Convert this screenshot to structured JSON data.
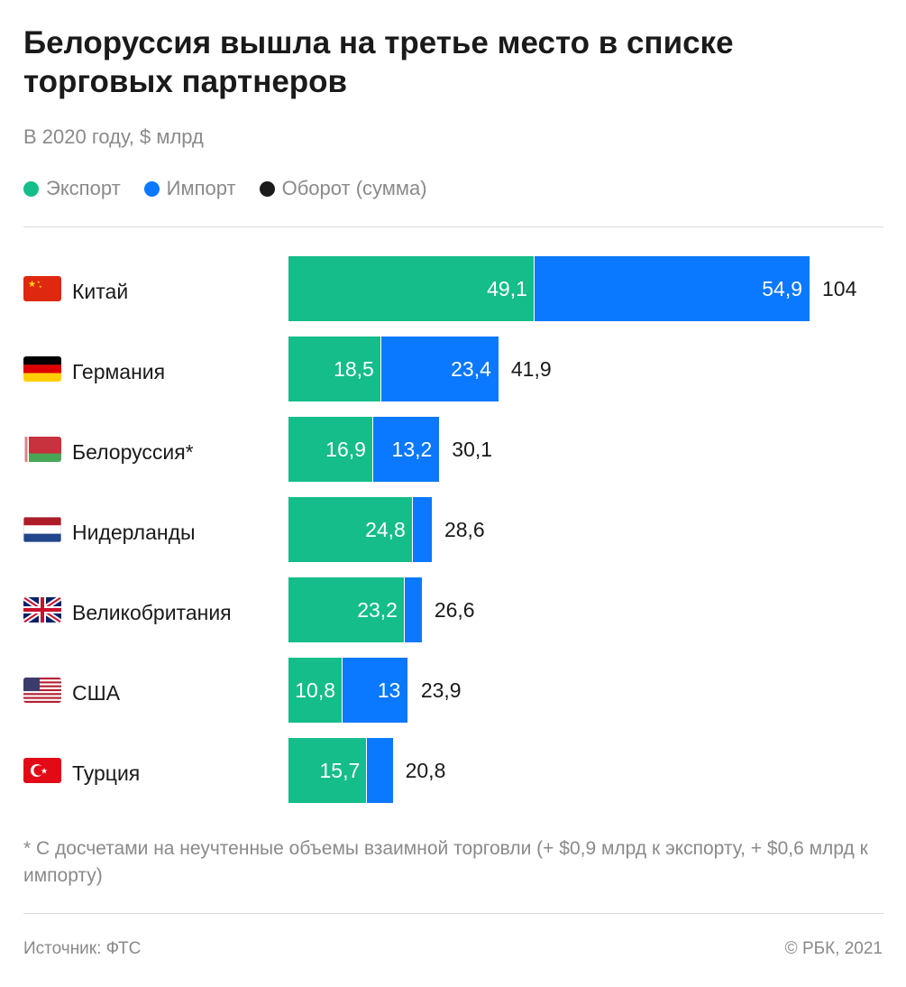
{
  "chart_data": {
    "type": "bar",
    "orientation": "horizontal",
    "stacked": true,
    "title": "Белоруссия вышла на третье место в списке торговых партнеров",
    "subtitle": "В 2020 году, $ млрд",
    "categories": [
      "Китай",
      "Германия",
      "Белоруссия*",
      "Нидерланды",
      "Великобритания",
      "США",
      "Турция"
    ],
    "flags": [
      "china-flag-icon",
      "germany-flag-icon",
      "belarus-flag-icon",
      "netherlands-flag-icon",
      "uk-flag-icon",
      "usa-flag-icon",
      "turkey-flag-icon"
    ],
    "series": [
      {
        "name": "Экспорт",
        "color": "#14bd8a",
        "values": [
          49.1,
          18.5,
          16.9,
          24.8,
          23.2,
          10.8,
          15.7
        ],
        "labels": [
          "49,1",
          "18,5",
          "16,9",
          "24,8",
          "23,2",
          "10,8",
          "15,7"
        ]
      },
      {
        "name": "Импорт",
        "color": "#0a78ff",
        "values": [
          54.9,
          23.4,
          13.2,
          3.8,
          3.4,
          13.0,
          5.1
        ],
        "labels": [
          "54,9",
          "23,4",
          "13,2",
          "",
          "",
          "13",
          ""
        ]
      }
    ],
    "totals": {
      "name": "Оборот (сумма)",
      "color": "#1a1a1a",
      "values": [
        104,
        41.9,
        30.1,
        28.6,
        26.6,
        23.9,
        20.8
      ],
      "labels": [
        "104",
        "41,9",
        "30,1",
        "28,6",
        "26,6",
        "23,9",
        "20,8"
      ]
    },
    "legend_position": "top-left",
    "grid": false
  },
  "footnote": "* С досчетами на неучтенные объемы взаимной торговли (+ $0,9 млрд к экспорту, + $0,6 млрд к импорту)",
  "source": "Источник: ФТС",
  "copyright": "© РБК, 2021"
}
